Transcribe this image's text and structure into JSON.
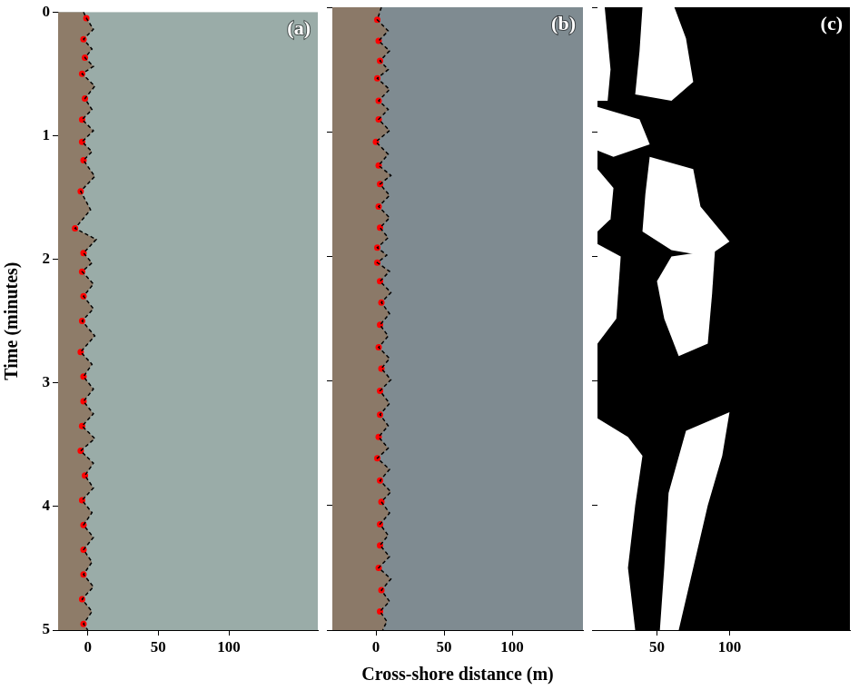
{
  "chart_data": [
    {
      "type": "scatter",
      "title": "(a)",
      "ylabel": "Time (minutes)",
      "xlim": [
        -21,
        163
      ],
      "xticks": [
        0,
        50,
        100
      ],
      "ylim": [
        0,
        5
      ],
      "yticks": [
        0,
        1,
        2,
        3,
        4,
        5
      ],
      "grid": false,
      "series": [
        {
          "type": "line",
          "line_style": "dashed",
          "color": "#000000",
          "x": [
            -3,
            -1,
            4,
            -3,
            3,
            -2,
            4,
            -4,
            5,
            -2,
            3,
            -4,
            4,
            -4,
            3,
            -3,
            5,
            -5,
            2,
            -9,
            6,
            -3,
            3,
            -4,
            4,
            -3,
            4,
            -4,
            5,
            -5,
            3,
            -3,
            4,
            -3,
            4,
            -4,
            5,
            -5,
            4,
            -2,
            4,
            -4,
            3,
            -3,
            4,
            -3,
            3,
            -3,
            4,
            -4,
            3,
            -3,
            0
          ],
          "values": [
            0,
            0.05,
            0.14,
            0.22,
            0.3,
            0.37,
            0.44,
            0.5,
            0.6,
            0.7,
            0.79,
            0.87,
            0.96,
            1.05,
            1.13,
            1.2,
            1.33,
            1.45,
            1.6,
            1.75,
            1.84,
            1.95,
            2.03,
            2.1,
            2.2,
            2.3,
            2.4,
            2.5,
            2.62,
            2.75,
            2.85,
            2.95,
            3.05,
            3.15,
            3.25,
            3.35,
            3.45,
            3.55,
            3.65,
            3.75,
            3.85,
            3.95,
            4.05,
            4.15,
            4.25,
            4.35,
            4.45,
            4.55,
            4.65,
            4.75,
            4.85,
            4.95,
            5
          ]
        },
        {
          "type": "scatter",
          "marker": "circle",
          "color": "#ff0000",
          "x": [
            -1,
            -3,
            -2,
            -4,
            -2,
            -4,
            -4,
            -3,
            -5,
            -9,
            -3,
            -4,
            -3,
            -4,
            -5,
            -3,
            -3,
            -4,
            -5,
            -2,
            -4,
            -3,
            -3,
            -3,
            -4,
            -3
          ],
          "values": [
            0.05,
            0.22,
            0.37,
            0.5,
            0.7,
            0.87,
            1.05,
            1.2,
            1.45,
            1.75,
            1.95,
            2.1,
            2.3,
            2.5,
            2.75,
            2.95,
            3.15,
            3.35,
            3.55,
            3.75,
            3.95,
            4.15,
            4.35,
            4.55,
            4.75,
            4.95
          ]
        }
      ]
    },
    {
      "type": "scatter",
      "title": "(b)",
      "xlabel": "Cross-shore distance (m)",
      "xlim": [
        -32,
        152
      ],
      "xticks": [
        0,
        50,
        100
      ],
      "ylim": [
        0,
        5
      ],
      "yticks": [
        0,
        1,
        2,
        3,
        4,
        5
      ],
      "grid": false,
      "tick_labels": "x",
      "series": [
        {
          "type": "line",
          "line_style": "dashed",
          "color": "#000000",
          "x": [
            4,
            1,
            9,
            2,
            10,
            3,
            9,
            1,
            10,
            2,
            9,
            2,
            10,
            0,
            9,
            2,
            11,
            3,
            10,
            2,
            10,
            3,
            9,
            1,
            8,
            1,
            10,
            3,
            11,
            4,
            10,
            3,
            9,
            2,
            10,
            4,
            11,
            3,
            10,
            3,
            9,
            2,
            9,
            1,
            10,
            3,
            11,
            4,
            10,
            3,
            9,
            3,
            10,
            2,
            11,
            4,
            10,
            3,
            8,
            5
          ],
          "values": [
            0,
            0.1,
            0.19,
            0.27,
            0.35,
            0.43,
            0.5,
            0.57,
            0.66,
            0.75,
            0.82,
            0.9,
            0.99,
            1.08,
            1.18,
            1.27,
            1.35,
            1.42,
            1.51,
            1.6,
            1.69,
            1.77,
            1.85,
            1.93,
            1.99,
            2.05,
            2.12,
            2.2,
            2.29,
            2.37,
            2.46,
            2.55,
            2.64,
            2.73,
            2.82,
            2.9,
            2.99,
            3.08,
            3.18,
            3.27,
            3.36,
            3.45,
            3.54,
            3.62,
            3.71,
            3.8,
            3.89,
            3.97,
            4.06,
            4.15,
            4.24,
            4.32,
            4.41,
            4.5,
            4.59,
            4.68,
            4.77,
            4.85,
            4.93,
            5
          ]
        },
        {
          "type": "scatter",
          "marker": "circle",
          "color": "#ff0000",
          "x": [
            1,
            2,
            3,
            1,
            2,
            2,
            0,
            2,
            3,
            2,
            3,
            1,
            1,
            3,
            4,
            3,
            2,
            4,
            3,
            3,
            2,
            1,
            3,
            4,
            3,
            3,
            2,
            4,
            3
          ],
          "values": [
            0.1,
            0.27,
            0.43,
            0.57,
            0.75,
            0.9,
            1.08,
            1.27,
            1.42,
            1.6,
            1.77,
            1.93,
            2.05,
            2.2,
            2.37,
            2.55,
            2.73,
            2.9,
            3.08,
            3.27,
            3.45,
            3.62,
            3.8,
            3.97,
            4.15,
            4.32,
            4.5,
            4.68,
            4.85
          ]
        }
      ]
    },
    {
      "type": "scatter",
      "title": "(c)",
      "xlim": [
        9,
        183
      ],
      "xticks": [
        50,
        100
      ],
      "ylim": [
        0,
        5
      ],
      "yticks": [
        0,
        1,
        2,
        3,
        4,
        5
      ],
      "grid": false,
      "tick_labels": "x",
      "color": "#ffffff",
      "white_regions": [
        [
          [
            40,
            0
          ],
          [
            62,
            0
          ],
          [
            70,
            0.25
          ],
          [
            75,
            0.6
          ],
          [
            60,
            0.75
          ],
          [
            35,
            0.7
          ],
          [
            38,
            0.35
          ]
        ],
        [
          [
            9,
            0
          ],
          [
            14,
            0
          ],
          [
            18,
            0.5
          ],
          [
            16,
            0.75
          ],
          [
            9,
            0.75
          ]
        ],
        [
          [
            9,
            0.8
          ],
          [
            38,
            0.9
          ],
          [
            45,
            1.1
          ],
          [
            20,
            1.2
          ],
          [
            9,
            1.15
          ]
        ],
        [
          [
            45,
            1.2
          ],
          [
            75,
            1.3
          ],
          [
            80,
            1.6
          ],
          [
            100,
            1.88
          ],
          [
            85,
            2.0
          ],
          [
            60,
            1.95
          ],
          [
            40,
            1.8
          ],
          [
            42,
            1.5
          ]
        ],
        [
          [
            9,
            1.3
          ],
          [
            20,
            1.45
          ],
          [
            18,
            1.7
          ],
          [
            9,
            1.8
          ]
        ],
        [
          [
            60,
            2.0
          ],
          [
            90,
            1.95
          ],
          [
            88,
            2.3
          ],
          [
            85,
            2.7
          ],
          [
            65,
            2.8
          ],
          [
            55,
            2.5
          ],
          [
            50,
            2.2
          ]
        ],
        [
          [
            9,
            1.9
          ],
          [
            25,
            2.0
          ],
          [
            22,
            2.5
          ],
          [
            9,
            2.7
          ]
        ],
        [
          [
            70,
            3.4
          ],
          [
            100,
            3.25
          ],
          [
            95,
            3.6
          ],
          [
            85,
            4.0
          ],
          [
            75,
            4.5
          ],
          [
            65,
            5
          ],
          [
            52,
            5
          ],
          [
            55,
            4.5
          ],
          [
            58,
            3.9
          ]
        ],
        [
          [
            9,
            3.3
          ],
          [
            30,
            3.45
          ],
          [
            40,
            3.6
          ],
          [
            35,
            4.0
          ],
          [
            30,
            4.5
          ],
          [
            35,
            5
          ],
          [
            9,
            5
          ]
        ]
      ]
    }
  ]
}
